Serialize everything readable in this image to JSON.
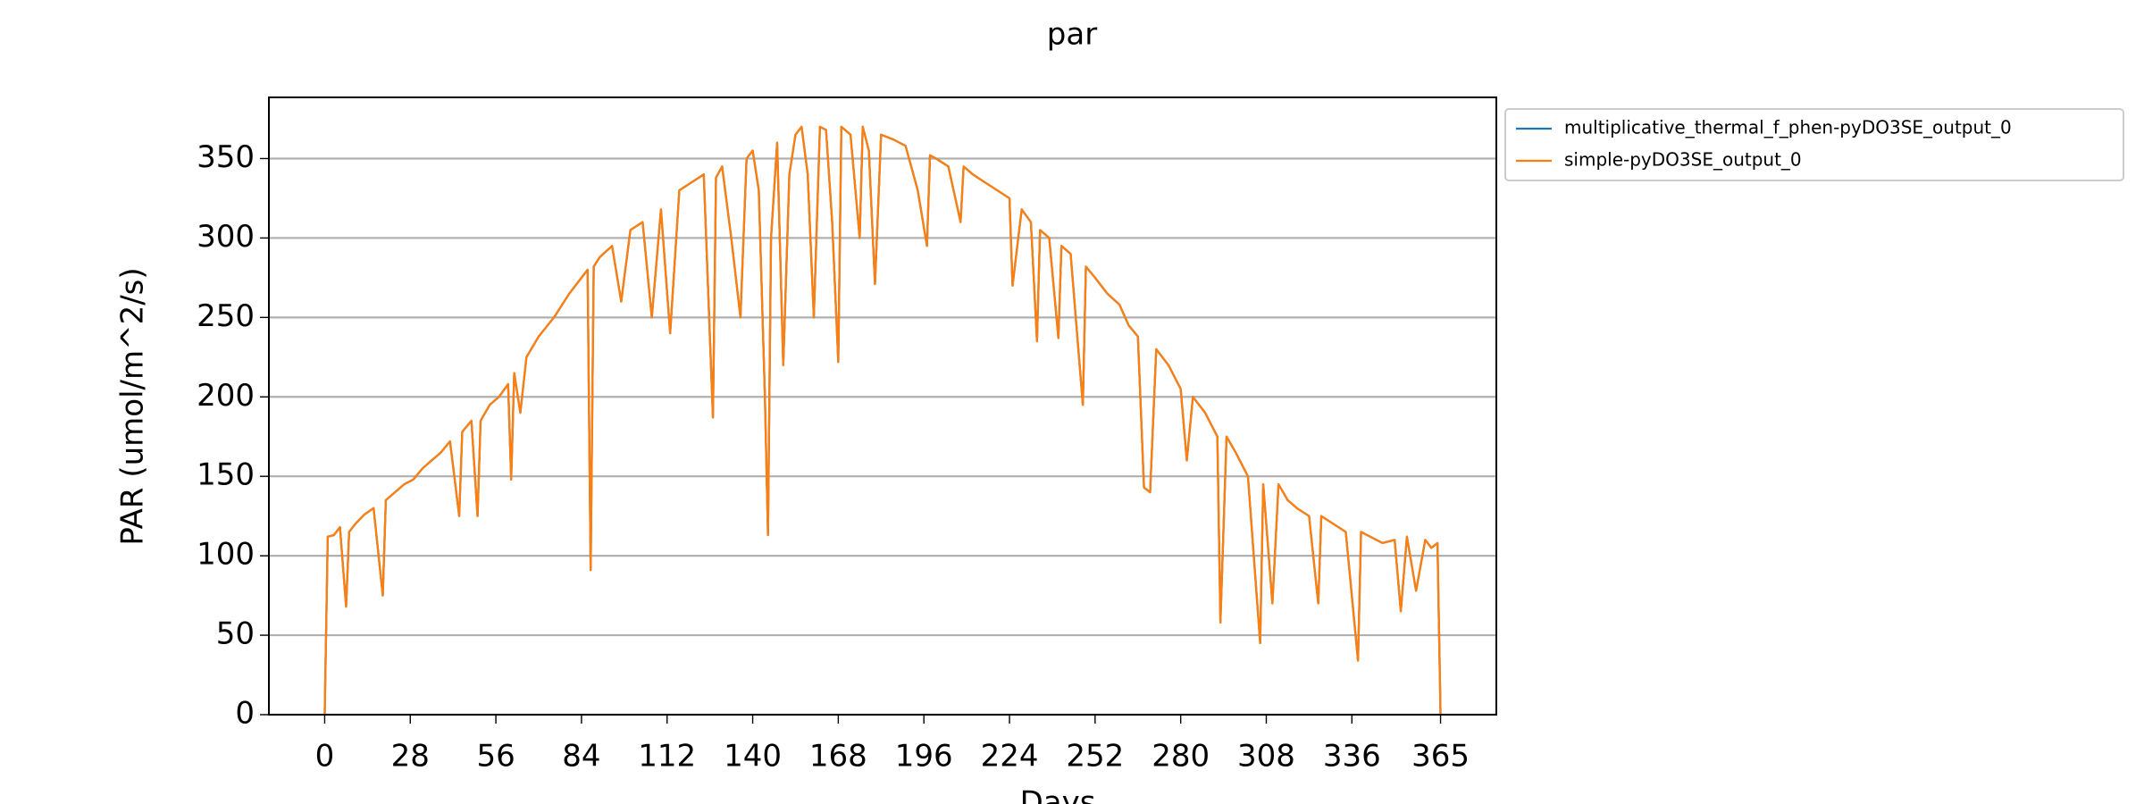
{
  "chart_data": {
    "type": "line",
    "title": "par",
    "x_label": "Days",
    "y_label": "PAR (umol/m^2/s)",
    "x": [
      0,
      1,
      3,
      5,
      7,
      8,
      10,
      13,
      16,
      19,
      20,
      23,
      26,
      29,
      32,
      35,
      38,
      41,
      44,
      45,
      48,
      50,
      51,
      54,
      57,
      60,
      61,
      62,
      64,
      66,
      70,
      75,
      80,
      84,
      86,
      87,
      88,
      90,
      94,
      97,
      100,
      104,
      107,
      110,
      113,
      116,
      120,
      124,
      127,
      128,
      130,
      133,
      136,
      138,
      140,
      142,
      144,
      145,
      146,
      148,
      150,
      152,
      154,
      156,
      158,
      160,
      162,
      164,
      166,
      168,
      169,
      172,
      175,
      176,
      178,
      180,
      182,
      186,
      190,
      194,
      197,
      198,
      200,
      204,
      208,
      209,
      212,
      216,
      220,
      224,
      225,
      228,
      231,
      233,
      234,
      237,
      240,
      241,
      244,
      248,
      249,
      252,
      256,
      260,
      263,
      266,
      268,
      270,
      272,
      276,
      280,
      282,
      284,
      288,
      292,
      293,
      295,
      298,
      302,
      306,
      307,
      310,
      312,
      315,
      318,
      322,
      325,
      326,
      330,
      334,
      338,
      339,
      342,
      346,
      350,
      352,
      354,
      357,
      360,
      362,
      364,
      365
    ],
    "series": [
      {
        "name": "multiplicative_thermal_f_phen-pyDO3SE_output_0",
        "color": "#1f77b4",
        "values": [
          0,
          112,
          113,
          118,
          68,
          115,
          120,
          126,
          130,
          75,
          135,
          140,
          145,
          148,
          155,
          160,
          165,
          172,
          125,
          178,
          185,
          125,
          185,
          195,
          200,
          208,
          148,
          215,
          190,
          225,
          238,
          250,
          265,
          275,
          280,
          91,
          282,
          288,
          295,
          260,
          305,
          310,
          250,
          318,
          240,
          330,
          335,
          340,
          187,
          338,
          345,
          300,
          250,
          350,
          355,
          330,
          200,
          113,
          300,
          360,
          220,
          340,
          365,
          370,
          340,
          250,
          370,
          368,
          310,
          222,
          370,
          365,
          300,
          370,
          355,
          271,
          365,
          362,
          358,
          330,
          295,
          352,
          350,
          345,
          310,
          345,
          340,
          335,
          330,
          325,
          270,
          318,
          310,
          235,
          305,
          300,
          237,
          295,
          290,
          195,
          282,
          275,
          265,
          258,
          245,
          238,
          143,
          140,
          230,
          220,
          205,
          160,
          200,
          190,
          175,
          58,
          175,
          165,
          150,
          45,
          145,
          70,
          145,
          135,
          130,
          125,
          70,
          125,
          120,
          115,
          34,
          115,
          112,
          108,
          110,
          65,
          112,
          78,
          110,
          105,
          108,
          0
        ]
      },
      {
        "name": "simple-pyDO3SE_output_0",
        "color": "#ff7f0e",
        "values": [
          0,
          112,
          113,
          118,
          68,
          115,
          120,
          126,
          130,
          75,
          135,
          140,
          145,
          148,
          155,
          160,
          165,
          172,
          125,
          178,
          185,
          125,
          185,
          195,
          200,
          208,
          148,
          215,
          190,
          225,
          238,
          250,
          265,
          275,
          280,
          91,
          282,
          288,
          295,
          260,
          305,
          310,
          250,
          318,
          240,
          330,
          335,
          340,
          187,
          338,
          345,
          300,
          250,
          350,
          355,
          330,
          200,
          113,
          300,
          360,
          220,
          340,
          365,
          370,
          340,
          250,
          370,
          368,
          310,
          222,
          370,
          365,
          300,
          370,
          355,
          271,
          365,
          362,
          358,
          330,
          295,
          352,
          350,
          345,
          310,
          345,
          340,
          335,
          330,
          325,
          270,
          318,
          310,
          235,
          305,
          300,
          237,
          295,
          290,
          195,
          282,
          275,
          265,
          258,
          245,
          238,
          143,
          140,
          230,
          220,
          205,
          160,
          200,
          190,
          175,
          58,
          175,
          165,
          150,
          45,
          145,
          70,
          145,
          135,
          130,
          125,
          70,
          125,
          120,
          115,
          34,
          115,
          112,
          108,
          110,
          65,
          112,
          78,
          110,
          105,
          108,
          0
        ]
      }
    ],
    "xlim": [
      -18.25,
      383.25
    ],
    "xticks": [
      0,
      28,
      56,
      84,
      112,
      140,
      168,
      196,
      224,
      252,
      280,
      308,
      336,
      365
    ],
    "ylim": [
      0,
      388.5
    ],
    "yticks": [
      0,
      50,
      100,
      150,
      200,
      250,
      300,
      350
    ],
    "grid": true,
    "legend": "outside right"
  }
}
